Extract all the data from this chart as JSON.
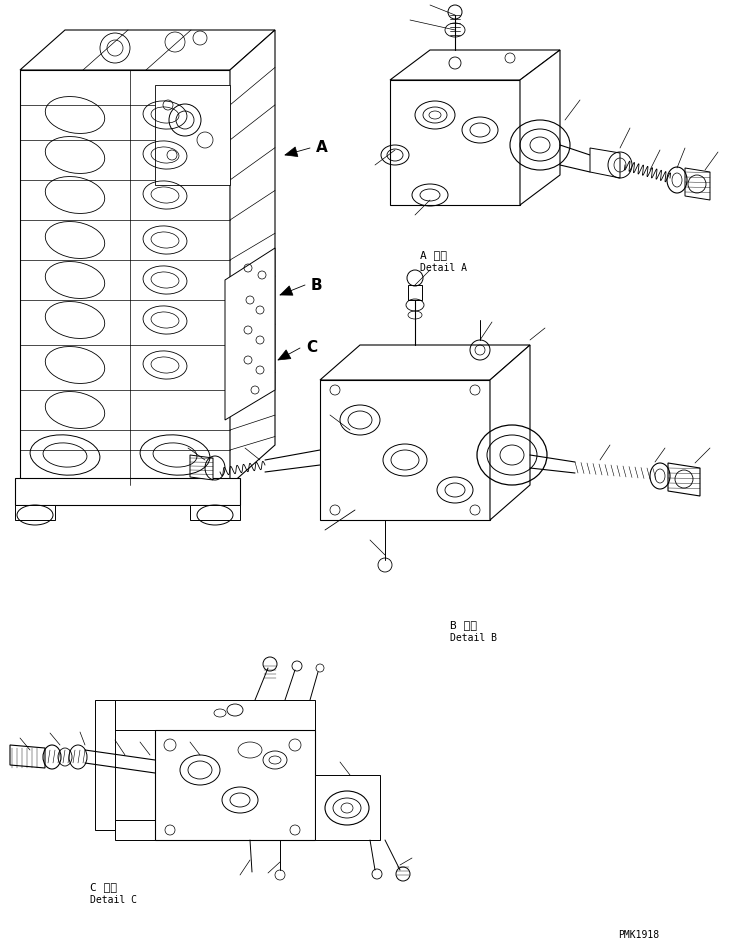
{
  "bg_color": "#ffffff",
  "line_color": "#000000",
  "fig_width": 7.29,
  "fig_height": 9.5,
  "dpi": 100,
  "label_A_japanese": "A 詳細",
  "label_A_english": "Detail A",
  "label_B_japanese": "B 詳細",
  "label_B_english": "Detail B",
  "label_C_japanese": "C 詳細",
  "label_C_english": "Detail C",
  "pmk_label": "PMK1918"
}
